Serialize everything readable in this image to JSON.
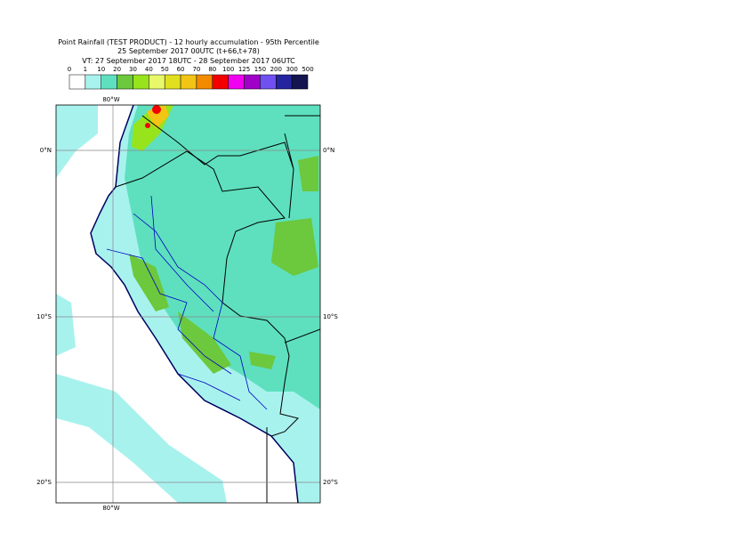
{
  "title": {
    "lines": [
      "Point Rainfall (TEST PRODUCT) - 12 hourly accumulation - 95th Percentile",
      "25 September 2017 00UTC (t+66,t+78)",
      "VT: 27 September 2017 18UTC - 28 September 2017 06UTC"
    ]
  },
  "legend": {
    "labels": [
      0,
      1,
      10,
      20,
      30,
      40,
      50,
      60,
      70,
      80,
      100,
      125,
      150,
      200,
      300,
      500
    ],
    "colors": [
      "#ffffff",
      "#a8f2ee",
      "#5ee0be",
      "#6cc83c",
      "#98e41c",
      "#e8f86a",
      "#e0e020",
      "#f2c414",
      "#f28a00",
      "#f20000",
      "#f000f0",
      "#a000c8",
      "#7050f0",
      "#2424a0",
      "#141450"
    ]
  },
  "map": {
    "lon_labels": [
      "80°W"
    ],
    "lat_labels": [
      "0°N",
      "10°S",
      "20°S"
    ]
  }
}
